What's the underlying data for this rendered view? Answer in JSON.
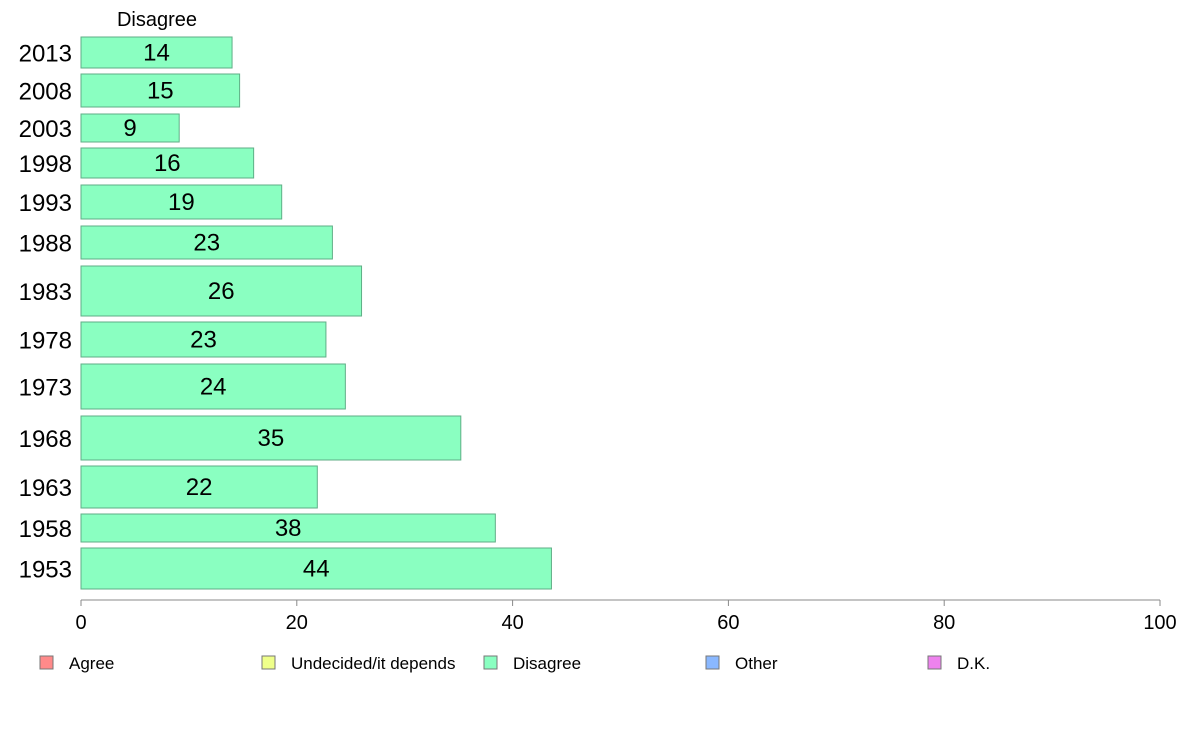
{
  "chart_data": {
    "type": "bar",
    "orientation": "horizontal",
    "panel_title": "Disagree",
    "categories": [
      "2013",
      "2008",
      "2003",
      "1998",
      "1993",
      "1988",
      "1983",
      "1978",
      "1973",
      "1968",
      "1963",
      "1958",
      "1953"
    ],
    "series": [
      {
        "name": "Disagree",
        "values": [
          14,
          15,
          9,
          16,
          19,
          23,
          26,
          23,
          24,
          35,
          22,
          38,
          44
        ],
        "precise_values": [
          14.0,
          14.7,
          9.1,
          16.0,
          18.6,
          23.3,
          26.0,
          22.7,
          24.5,
          35.2,
          21.9,
          38.4,
          43.6
        ],
        "color": "#8affc1"
      }
    ],
    "xlim": [
      0,
      100
    ],
    "xticks": [
      0,
      20,
      40,
      60,
      80,
      100
    ],
    "grid": false,
    "legend": {
      "placement": "bottom",
      "entries": [
        {
          "label": "Agree",
          "color": "#ff8a8a"
        },
        {
          "label": "Undecided/it depends",
          "color": "#efff8a"
        },
        {
          "label": "Disagree",
          "color": "#8affc1"
        },
        {
          "label": "Other",
          "color": "#8ab8ff"
        },
        {
          "label": "D.K.",
          "color": "#ee82ee"
        }
      ]
    }
  }
}
